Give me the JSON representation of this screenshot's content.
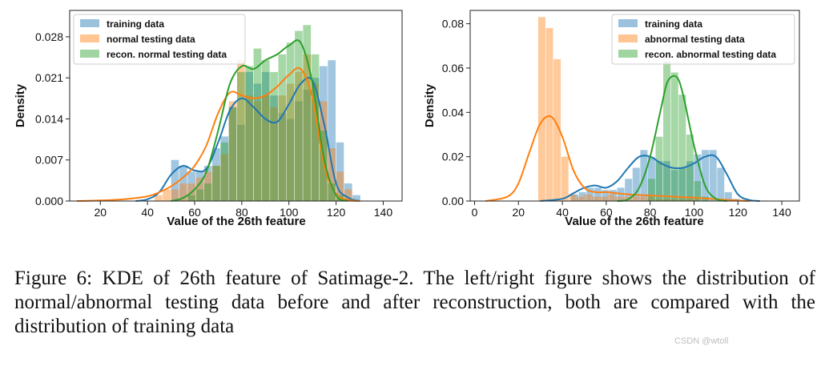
{
  "colors": {
    "training": "#1f77b4",
    "normal": "#ff7f0e",
    "recon": "#2ca02c"
  },
  "chart_data": [
    {
      "type": "histogram+kde",
      "xlabel": "Value of the 26th feature",
      "ylabel": "Density",
      "xlim": [
        7,
        148
      ],
      "ylim": [
        0,
        0.0325
      ],
      "xticks": [
        20,
        40,
        60,
        80,
        100,
        120,
        140
      ],
      "yticks": [
        0.0,
        0.007,
        0.014,
        0.021,
        0.028
      ],
      "ytick_labels": [
        "0.000",
        "0.007",
        "0.014",
        "0.021",
        "0.028"
      ],
      "legend_position": "upper-left",
      "series": [
        {
          "name": "training data",
          "color_key": "training",
          "bins": {
            "start": 50,
            "width": 3.5,
            "heights": [
              0.007,
              0.006,
              0.005,
              0.005,
              0.006,
              0.009,
              0.011,
              0.016,
              0.013,
              0.022,
              0.02,
              0.022,
              0.018,
              0.015,
              0.014,
              0.017,
              0.019,
              0.021,
              0.023,
              0.024,
              0.01,
              0.003,
              0.001
            ]
          },
          "kde": {
            "x": [
              35,
              40,
              45,
              50,
              55,
              60,
              65,
              70,
              75,
              80,
              85,
              90,
              95,
              100,
              105,
              110,
              115,
              120,
              125,
              130
            ],
            "y": [
              0.0,
              0.0003,
              0.0015,
              0.0045,
              0.006,
              0.0052,
              0.0055,
              0.01,
              0.0155,
              0.0175,
              0.016,
              0.014,
              0.0135,
              0.0165,
              0.02,
              0.0205,
              0.013,
              0.003,
              0.0006,
              0.0
            ]
          }
        },
        {
          "name": "normal testing data",
          "color_key": "normal",
          "bins": {
            "start": 43,
            "width": 3.5,
            "heights": [
              0.001,
              0.002,
              0.002,
              0.003,
              0.003,
              0.004,
              0.005,
              0.006,
              0.008,
              0.017,
              0.024,
              0.018,
              0.017,
              0.018,
              0.016,
              0.018,
              0.02,
              0.022,
              0.025,
              0.02,
              0.017,
              0.009,
              0.005,
              0.002
            ]
          },
          "kde": {
            "x": [
              10,
              20,
              30,
              40,
              45,
              50,
              55,
              60,
              65,
              70,
              75,
              80,
              85,
              90,
              95,
              100,
              105,
              110,
              115,
              120,
              125,
              130
            ],
            "y": [
              0.0,
              0.0001,
              0.0003,
              0.0008,
              0.0015,
              0.0025,
              0.004,
              0.006,
              0.0095,
              0.015,
              0.0185,
              0.018,
              0.0175,
              0.018,
              0.0195,
              0.0215,
              0.0225,
              0.0175,
              0.006,
              0.0012,
              0.0002,
              0.0
            ]
          }
        },
        {
          "name": "recon. normal testing data",
          "color_key": "recon",
          "bins": {
            "start": 57,
            "width": 3.5,
            "heights": [
              0.001,
              0.002,
              0.003,
              0.006,
              0.01,
              0.016,
              0.022,
              0.023,
              0.026,
              0.024,
              0.022,
              0.025,
              0.027,
              0.029,
              0.03,
              0.025,
              0.012,
              0.003,
              0.001
            ]
          },
          "kde": {
            "x": [
              50,
              55,
              60,
              65,
              70,
              75,
              80,
              85,
              90,
              95,
              100,
              105,
              110,
              115,
              120,
              125
            ],
            "y": [
              0.0,
              0.0005,
              0.002,
              0.005,
              0.012,
              0.02,
              0.023,
              0.0225,
              0.024,
              0.025,
              0.0265,
              0.027,
              0.02,
              0.007,
              0.001,
              0.0
            ]
          }
        }
      ]
    },
    {
      "type": "histogram+kde",
      "xlabel": "Value of the 26th feature",
      "ylabel": "Density",
      "xlim": [
        -2,
        148
      ],
      "ylim": [
        0,
        0.086
      ],
      "xticks": [
        0,
        20,
        40,
        60,
        80,
        100,
        120,
        140
      ],
      "yticks": [
        0.0,
        0.02,
        0.04,
        0.06,
        0.08
      ],
      "ytick_labels": [
        "0.00",
        "0.02",
        "0.04",
        "0.06",
        "0.08"
      ],
      "legend_position": "upper-right",
      "series": [
        {
          "name": "training data",
          "color_key": "training",
          "bins": {
            "start": 44,
            "width": 3.5,
            "heights": [
              0.003,
              0.004,
              0.006,
              0.006,
              0.005,
              0.005,
              0.006,
              0.01,
              0.015,
              0.023,
              0.02,
              0.018,
              0.018,
              0.014,
              0.015,
              0.018,
              0.021,
              0.023,
              0.023,
              0.015,
              0.004,
              0.001
            ]
          },
          "kde": {
            "x": [
              30,
              40,
              45,
              50,
              55,
              60,
              65,
              70,
              75,
              80,
              85,
              90,
              95,
              100,
              105,
              110,
              115,
              120,
              125,
              130
            ],
            "y": [
              0.0,
              0.001,
              0.0035,
              0.006,
              0.007,
              0.006,
              0.009,
              0.015,
              0.02,
              0.02,
              0.017,
              0.015,
              0.015,
              0.017,
              0.02,
              0.02,
              0.012,
              0.003,
              0.0005,
              0.0
            ]
          }
        },
        {
          "name": "abnormal testing data",
          "color_key": "normal",
          "bins": {
            "start": 29,
            "width": 3.5,
            "heights": [
              0.083,
              0.078,
              0.064,
              0.02,
              0.003,
              0.002,
              0.003,
              0.002,
              0.002,
              0.003,
              0.002,
              0.002,
              0.002,
              0.002,
              0.002,
              0.001,
              0.001,
              0.001,
              0.001,
              0.001,
              0.001
            ]
          },
          "kde": {
            "x": [
              5,
              15,
              20,
              25,
              30,
              35,
              40,
              45,
              50,
              55,
              60,
              70,
              80,
              90,
              100,
              110,
              120,
              125
            ],
            "y": [
              0.0,
              0.002,
              0.008,
              0.022,
              0.035,
              0.038,
              0.029,
              0.014,
              0.006,
              0.004,
              0.004,
              0.003,
              0.0025,
              0.002,
              0.0015,
              0.0008,
              0.0002,
              0.0
            ]
          }
        },
        {
          "name": "recon. abnormal testing data",
          "color_key": "recon",
          "bins": {
            "start": 79,
            "width": 3.5,
            "heights": [
              0.01,
              0.029,
              0.063,
              0.058,
              0.048,
              0.03,
              0.009,
              0.002
            ]
          },
          "kde": {
            "x": [
              65,
              70,
              75,
              80,
              85,
              88,
              92,
              95,
              100,
              105,
              110,
              115
            ],
            "y": [
              0.0,
              0.0008,
              0.006,
              0.02,
              0.042,
              0.054,
              0.056,
              0.048,
              0.025,
              0.007,
              0.001,
              0.0
            ]
          }
        }
      ]
    }
  ],
  "caption": "Figure 6: KDE of 26th feature of Satimage-2. The left/right figure shows the distribution of normal/abnormal testing data before and after reconstruction, both are compared with the distribution of training data",
  "watermark": "CSDN @wtoll"
}
